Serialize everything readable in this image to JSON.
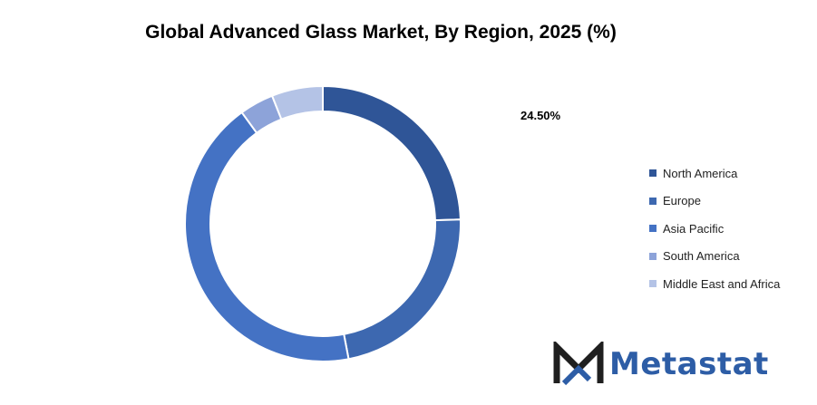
{
  "chart_data": {
    "type": "pie",
    "variant": "donut",
    "title": "Global Advanced Glass Market, By Region, 2025 (%)",
    "categories": [
      "North America",
      "Europe",
      "Asia Pacific",
      "South America",
      "Middle East and Africa"
    ],
    "values": [
      24.5,
      22.5,
      43.0,
      4.0,
      6.0
    ],
    "unit": "%",
    "data_labels": [
      "24.50%"
    ],
    "colors": [
      "#2f5597",
      "#3d68b0",
      "#4472c4",
      "#8da3d9",
      "#b4c3e6"
    ],
    "legend_position": "right"
  },
  "logo": {
    "text": "Metastat",
    "color": "#2d5da6",
    "mark_color": "#1f1f1f"
  }
}
